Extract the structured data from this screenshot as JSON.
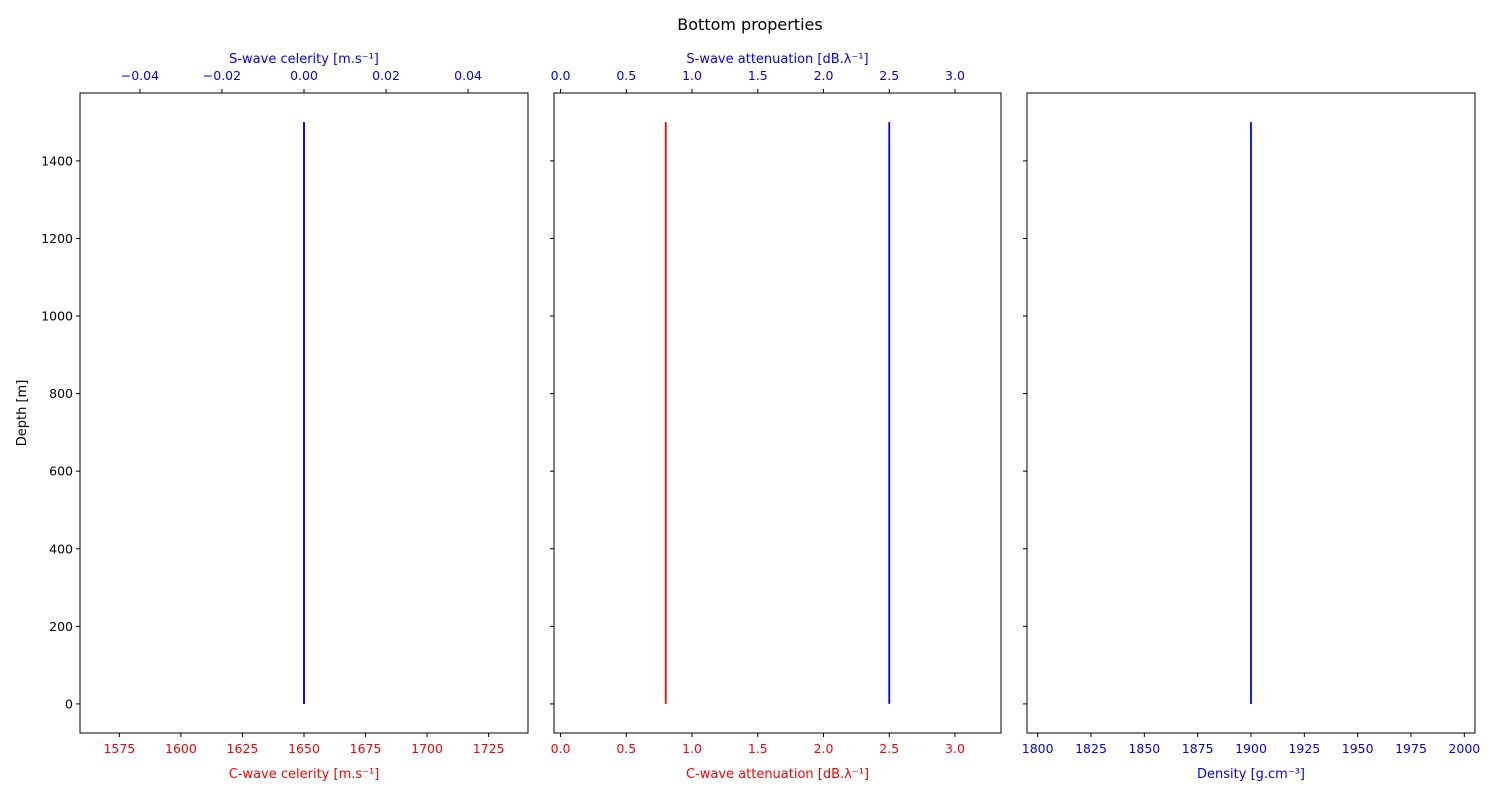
{
  "title": "Bottom properties",
  "colors": {
    "cwave": "#ff0000",
    "swave": "#0000ff",
    "axis": "#000000"
  },
  "chart_data": [
    {
      "type": "line",
      "ylabel": "Depth [m]",
      "ylim": [
        1575,
        -75
      ],
      "y_ticks": [
        0,
        200,
        400,
        600,
        800,
        1000,
        1200,
        1400
      ],
      "y_tick_labels": [
        "0",
        "200",
        "400",
        "600",
        "800",
        "1000",
        "1200",
        "1400"
      ],
      "bottom_axis": {
        "label": "C-wave celerity [m.s⁻¹]",
        "color": "#ff0000",
        "xlim": [
          1559,
          1741
        ],
        "ticks": [
          1575,
          1600,
          1625,
          1650,
          1675,
          1700,
          1725
        ],
        "tick_labels": [
          "1575",
          "1600",
          "1625",
          "1650",
          "1675",
          "1700",
          "1725"
        ]
      },
      "top_axis": {
        "label": "S-wave celerity [m.s⁻¹]",
        "color": "#0000ff",
        "xlim": [
          -0.0546,
          0.0546
        ],
        "ticks": [
          -0.04,
          -0.02,
          0.0,
          0.02,
          0.04
        ],
        "tick_labels": [
          "−0.04",
          "−0.02",
          "0.00",
          "0.02",
          "0.04"
        ]
      },
      "series": [
        {
          "axis": "bottom",
          "color": "#ff0000",
          "x": [
            1650,
            1650
          ],
          "y": [
            0,
            1500
          ]
        },
        {
          "axis": "top",
          "color": "#0000ff",
          "x": [
            0.0,
            0.0
          ],
          "y": [
            0,
            1500
          ]
        }
      ]
    },
    {
      "type": "line",
      "ylim": [
        1575,
        -75
      ],
      "bottom_axis": {
        "label": "C-wave attenuation [dB.λ⁻¹]",
        "color": "#ff0000",
        "xlim": [
          -0.05,
          3.35
        ],
        "ticks": [
          0.0,
          0.5,
          1.0,
          1.5,
          2.0,
          2.5,
          3.0
        ],
        "tick_labels": [
          "0.0",
          "0.5",
          "1.0",
          "1.5",
          "2.0",
          "2.5",
          "3.0"
        ]
      },
      "top_axis": {
        "label": "S-wave attenuation [dB.λ⁻¹]",
        "color": "#0000ff",
        "xlim": [
          -0.05,
          3.35
        ],
        "ticks": [
          0.0,
          0.5,
          1.0,
          1.5,
          2.0,
          2.5,
          3.0
        ],
        "tick_labels": [
          "0.0",
          "0.5",
          "1.0",
          "1.5",
          "2.0",
          "2.5",
          "3.0"
        ]
      },
      "series": [
        {
          "axis": "bottom",
          "color": "#ff0000",
          "x": [
            0.8,
            0.8
          ],
          "y": [
            0,
            1500
          ]
        },
        {
          "axis": "top",
          "color": "#0000ff",
          "x": [
            2.5,
            2.5
          ],
          "y": [
            0,
            1500
          ]
        }
      ]
    },
    {
      "type": "line",
      "ylim": [
        1575,
        -75
      ],
      "bottom_axis": {
        "label": "Density [g.cm⁻³]",
        "color": "#0000ff",
        "xlim": [
          1795,
          2005
        ],
        "ticks": [
          1800,
          1825,
          1850,
          1875,
          1900,
          1925,
          1950,
          1975,
          2000
        ],
        "tick_labels": [
          "1800",
          "1825",
          "1850",
          "1875",
          "1900",
          "1925",
          "1950",
          "1975",
          "2000"
        ]
      },
      "series": [
        {
          "axis": "bottom",
          "color": "#0000ff",
          "x": [
            1900,
            1900
          ],
          "y": [
            0,
            1500
          ]
        }
      ]
    }
  ]
}
